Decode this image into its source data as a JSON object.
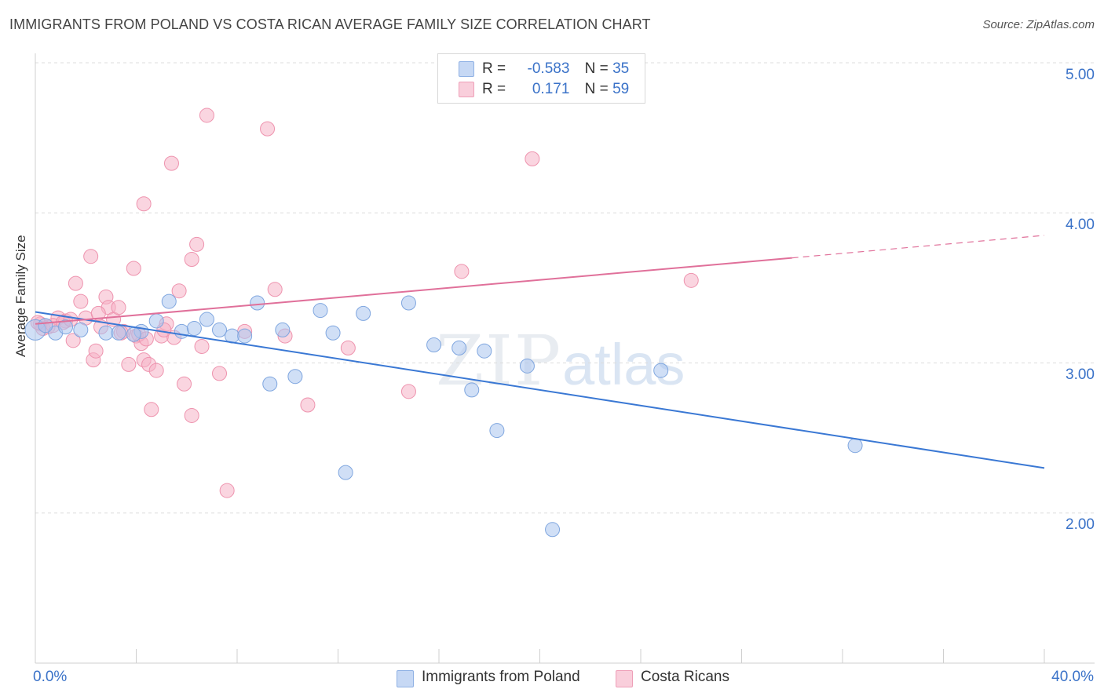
{
  "header": {
    "title": "IMMIGRANTS FROM POLAND VS COSTA RICAN AVERAGE FAMILY SIZE CORRELATION CHART",
    "source": "Source: ZipAtlas.com"
  },
  "watermark": {
    "zip": "ZIP",
    "atlas": "atlas"
  },
  "legend": {
    "rows": [
      {
        "r_label": "R =",
        "r_value": "-0.583",
        "n_label": "N =",
        "n_value": "35",
        "color": "#a9c4ee"
      },
      {
        "r_label": "R =",
        "r_value": "0.171",
        "n_label": "N =",
        "n_value": "59",
        "color": "#f5b3c7"
      }
    ]
  },
  "bottom_legend": [
    {
      "label": "Immigrants from Poland",
      "color": "#a9c4ee"
    },
    {
      "label": "Costa Ricans",
      "color": "#f5b3c7"
    }
  ],
  "axes": {
    "ylabel": "Average Family Size",
    "yticks": [
      "5.00",
      "4.00",
      "3.00",
      "2.00"
    ],
    "xtick_left": "0.0%",
    "xtick_right": "40.0%"
  },
  "colors": {
    "blue_fill": "#a9c4ee",
    "blue_stroke": "#7fa6df",
    "blue_line": "#3a78d4",
    "pink_fill": "#f5b3c7",
    "pink_stroke": "#ee93ae",
    "pink_line": "#e0709a",
    "grid": "#dcdcdc",
    "tick_text": "#3a72c8"
  },
  "chart_data": {
    "type": "scatter",
    "xlim": [
      0,
      40
    ],
    "ylim": [
      1.0,
      5.0
    ],
    "xlabel": "",
    "ylabel": "Average Family Size",
    "grid": true,
    "series": [
      {
        "name": "Immigrants from Poland",
        "color": "#a9c4ee",
        "points": [
          [
            0.0,
            3.22
          ],
          [
            0.8,
            3.2
          ],
          [
            1.8,
            3.22
          ],
          [
            2.8,
            3.2
          ],
          [
            3.3,
            3.2
          ],
          [
            4.2,
            3.21
          ],
          [
            4.8,
            3.28
          ],
          [
            5.3,
            3.41
          ],
          [
            5.8,
            3.21
          ],
          [
            6.3,
            3.23
          ],
          [
            6.8,
            3.29
          ],
          [
            7.3,
            3.22
          ],
          [
            7.8,
            3.18
          ],
          [
            8.3,
            3.18
          ],
          [
            8.8,
            3.4
          ],
          [
            9.3,
            2.86
          ],
          [
            9.8,
            3.22
          ],
          [
            10.3,
            2.91
          ],
          [
            11.3,
            3.35
          ],
          [
            11.8,
            3.2
          ],
          [
            12.3,
            2.27
          ],
          [
            13.0,
            3.33
          ],
          [
            14.8,
            3.4
          ],
          [
            15.8,
            3.12
          ],
          [
            16.8,
            3.1
          ],
          [
            17.3,
            2.82
          ],
          [
            17.8,
            3.08
          ],
          [
            18.3,
            2.55
          ],
          [
            19.5,
            2.98
          ],
          [
            20.5,
            1.89
          ],
          [
            24.8,
            2.95
          ],
          [
            32.5,
            2.45
          ],
          [
            0.4,
            3.25
          ],
          [
            1.2,
            3.24
          ],
          [
            3.9,
            3.19
          ]
        ],
        "trend": {
          "x": [
            0.0,
            40.0
          ],
          "y": [
            3.34,
            2.3
          ]
        }
      },
      {
        "name": "Costa Ricans",
        "color": "#f5b3c7",
        "points": [
          [
            0.2,
            3.26
          ],
          [
            0.5,
            3.24
          ],
          [
            0.9,
            3.3
          ],
          [
            1.2,
            3.28
          ],
          [
            1.5,
            3.15
          ],
          [
            1.6,
            3.53
          ],
          [
            1.8,
            3.41
          ],
          [
            2.0,
            3.3
          ],
          [
            2.2,
            3.71
          ],
          [
            2.3,
            3.02
          ],
          [
            2.4,
            3.08
          ],
          [
            2.6,
            3.24
          ],
          [
            2.8,
            3.44
          ],
          [
            2.9,
            3.37
          ],
          [
            3.1,
            3.29
          ],
          [
            3.3,
            3.37
          ],
          [
            3.5,
            3.21
          ],
          [
            3.7,
            2.99
          ],
          [
            3.9,
            3.63
          ],
          [
            4.0,
            3.18
          ],
          [
            4.2,
            3.13
          ],
          [
            4.3,
            3.02
          ],
          [
            4.3,
            4.06
          ],
          [
            4.5,
            2.99
          ],
          [
            4.6,
            2.69
          ],
          [
            4.8,
            2.95
          ],
          [
            5.0,
            3.18
          ],
          [
            5.2,
            3.26
          ],
          [
            5.4,
            4.33
          ],
          [
            5.5,
            3.17
          ],
          [
            5.7,
            3.48
          ],
          [
            5.9,
            2.86
          ],
          [
            6.2,
            2.65
          ],
          [
            6.2,
            3.69
          ],
          [
            6.4,
            3.79
          ],
          [
            6.6,
            3.11
          ],
          [
            6.8,
            4.65
          ],
          [
            7.3,
            2.93
          ],
          [
            7.6,
            2.15
          ],
          [
            8.3,
            3.21
          ],
          [
            9.2,
            4.56
          ],
          [
            9.5,
            3.49
          ],
          [
            9.9,
            3.18
          ],
          [
            10.8,
            2.72
          ],
          [
            12.4,
            3.1
          ],
          [
            14.8,
            2.81
          ],
          [
            16.9,
            3.61
          ],
          [
            19.7,
            4.36
          ],
          [
            26.0,
            3.55
          ],
          [
            0.3,
            3.23
          ],
          [
            0.7,
            3.25
          ],
          [
            1.1,
            3.27
          ],
          [
            3.4,
            3.2
          ],
          [
            4.1,
            3.19
          ],
          [
            2.5,
            3.33
          ],
          [
            1.4,
            3.29
          ],
          [
            0.1,
            3.27
          ],
          [
            5.1,
            3.22
          ],
          [
            4.4,
            3.16
          ]
        ],
        "trend": {
          "x": [
            0.0,
            30.0
          ],
          "y": [
            3.26,
            3.7
          ]
        },
        "trend_dashed": {
          "x": [
            30.0,
            40.0
          ],
          "y": [
            3.7,
            3.85
          ]
        }
      }
    ]
  }
}
